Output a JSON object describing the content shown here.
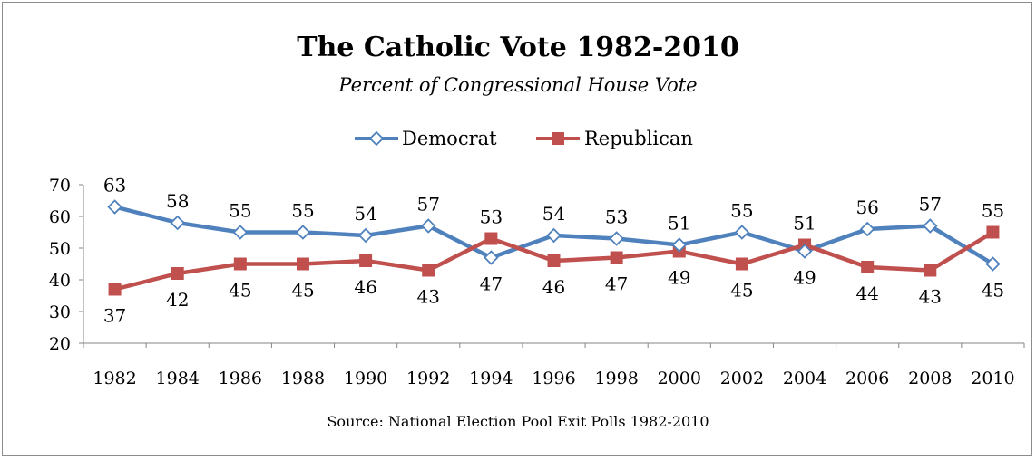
{
  "chart_data": {
    "type": "line",
    "title": "The Catholic Vote 1982-2010",
    "subtitle": "Percent of Congressional House Vote",
    "categories": [
      "1982",
      "1984",
      "1986",
      "1988",
      "1990",
      "1992",
      "1994",
      "1996",
      "1998",
      "2000",
      "2002",
      "2004",
      "2006",
      "2008",
      "2010"
    ],
    "series": [
      {
        "name": "Democrat",
        "values": [
          63,
          58,
          55,
          55,
          54,
          57,
          47,
          54,
          53,
          51,
          55,
          49,
          56,
          57,
          45
        ],
        "color": "#4f81bd",
        "marker": "diamond-open"
      },
      {
        "name": "Republican",
        "values": [
          37,
          42,
          45,
          45,
          46,
          43,
          53,
          46,
          47,
          49,
          45,
          51,
          44,
          43,
          55
        ],
        "color": "#c0504d",
        "marker": "square"
      }
    ],
    "ylim": [
      20,
      70
    ],
    "yticks": [
      "20",
      "30",
      "40",
      "50",
      "60",
      "70"
    ],
    "grid": false,
    "legend": "top-center",
    "source": "Source: National Election Pool Exit Polls 1982-2010"
  }
}
